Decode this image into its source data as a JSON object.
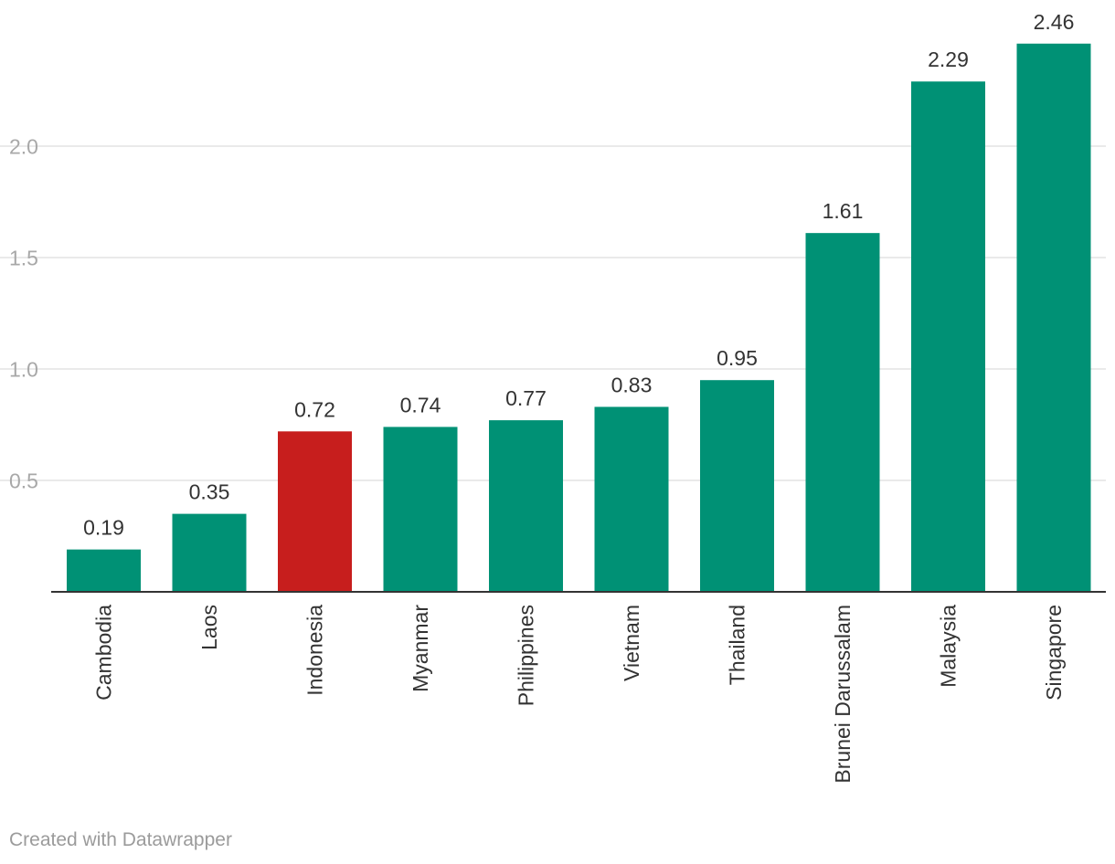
{
  "chart_data": {
    "type": "bar",
    "categories": [
      "Cambodia",
      "Laos",
      "Indonesia",
      "Myanmar",
      "Philippines",
      "Vietnam",
      "Thailand",
      "Brunei Darussalam",
      "Malaysia",
      "Singapore"
    ],
    "values": [
      0.19,
      0.35,
      0.72,
      0.74,
      0.77,
      0.83,
      0.95,
      1.61,
      2.29,
      2.46
    ],
    "value_labels": [
      "0.19",
      "0.35",
      "0.72",
      "0.74",
      "0.77",
      "0.83",
      "0.95",
      "1.61",
      "2.29",
      "2.46"
    ],
    "highlight_category": "Indonesia",
    "yticks": [
      0.5,
      1.0,
      1.5,
      2.0
    ],
    "ytick_labels": [
      "0.5",
      "1.0",
      "1.5",
      "2.0"
    ],
    "ylim": [
      0,
      2.46
    ],
    "grid": true,
    "title": "",
    "xlabel": "",
    "ylabel": "",
    "colors": {
      "bar": "#009175",
      "highlight": "#c71e1d"
    }
  },
  "footer": {
    "credit": "Created with Datawrapper"
  }
}
